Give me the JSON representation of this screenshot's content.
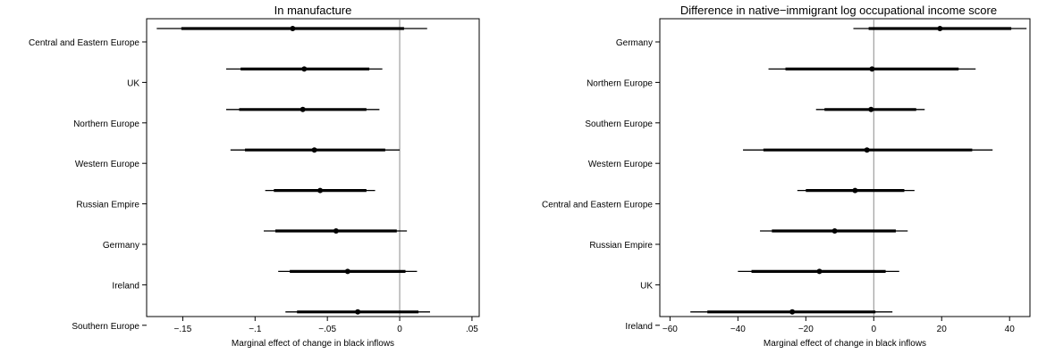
{
  "chart_data": [
    {
      "type": "coefficient-plot",
      "title": "In manufacture",
      "xlabel": "Marginal effect of change in black inflows",
      "ylabel": "",
      "xlim": [
        -0.175,
        0.055
      ],
      "xticks": [
        -0.15,
        -0.1,
        -0.05,
        0,
        0.05
      ],
      "xtick_labels": [
        "−.15",
        "−.1",
        "−.05",
        "0",
        ".05"
      ],
      "reference_line": 0,
      "grid": false,
      "categories": [
        "Central and Eastern Europe",
        "UK",
        "Northern Europe",
        "Western Europe",
        "Russian Empire",
        "Germany",
        "Ireland",
        "Southern Europe"
      ],
      "estimates": [
        -0.074,
        -0.066,
        -0.067,
        -0.059,
        -0.055,
        -0.044,
        -0.036,
        -0.029
      ],
      "ci_inner": [
        [
          -0.151,
          0.003
        ],
        [
          -0.11,
          -0.021
        ],
        [
          -0.111,
          -0.023
        ],
        [
          -0.107,
          -0.01
        ],
        [
          -0.087,
          -0.023
        ],
        [
          -0.086,
          -0.002
        ],
        [
          -0.076,
          0.004
        ],
        [
          -0.071,
          0.013
        ]
      ],
      "ci_outer": [
        [
          -0.168,
          0.019
        ],
        [
          -0.12,
          -0.012
        ],
        [
          -0.12,
          -0.014
        ],
        [
          -0.117,
          0.0
        ],
        [
          -0.093,
          -0.017
        ],
        [
          -0.094,
          0.005
        ],
        [
          -0.084,
          0.012
        ],
        [
          -0.079,
          0.021
        ]
      ]
    },
    {
      "type": "coefficient-plot",
      "title": "Difference in native−immigrant log occupational income score",
      "xlabel": "Marginal effect of change in black inflows",
      "ylabel": "",
      "xlim": [
        -63,
        46
      ],
      "xticks": [
        -60,
        -40,
        -20,
        0,
        20,
        40
      ],
      "xtick_labels": [
        "−60",
        "−40",
        "−20",
        "0",
        "20",
        "40"
      ],
      "reference_line": 0,
      "grid": false,
      "categories": [
        "Germany",
        "Northern Europe",
        "Southern Europe",
        "Western Europe",
        "Central and Eastern Europe",
        "Russian Empire",
        "UK",
        "Ireland"
      ],
      "estimates": [
        19.5,
        -0.5,
        -0.8,
        -2.0,
        -5.5,
        -11.5,
        -16.0,
        -24.0
      ],
      "ci_inner": [
        [
          -1.5,
          40.5
        ],
        [
          -26.0,
          25.0
        ],
        [
          -14.5,
          12.5
        ],
        [
          -32.5,
          29.0
        ],
        [
          -20.0,
          9.0
        ],
        [
          -30.0,
          6.5
        ],
        [
          -36.0,
          3.5
        ],
        [
          -49.0,
          0.5
        ]
      ],
      "ci_outer": [
        [
          -6.0,
          45.0
        ],
        [
          -31.0,
          30.0
        ],
        [
          -17.0,
          15.0
        ],
        [
          -38.5,
          35.0
        ],
        [
          -22.5,
          12.0
        ],
        [
          -33.5,
          10.0
        ],
        [
          -40.0,
          7.5
        ],
        [
          -54.0,
          5.5
        ]
      ]
    }
  ]
}
